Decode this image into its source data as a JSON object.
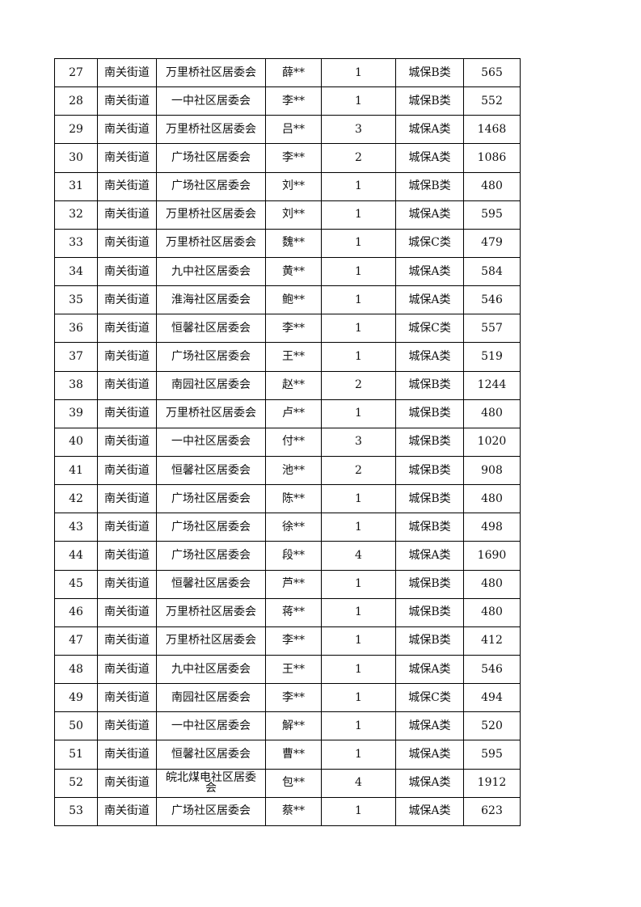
{
  "table": {
    "rows": [
      [
        "27",
        "南关街道",
        "万里桥社区居委会",
        "薛**",
        "1",
        "城保B类",
        "565"
      ],
      [
        "28",
        "南关街道",
        "一中社区居委会",
        "李**",
        "1",
        "城保B类",
        "552"
      ],
      [
        "29",
        "南关街道",
        "万里桥社区居委会",
        "吕**",
        "3",
        "城保A类",
        "1468"
      ],
      [
        "30",
        "南关街道",
        "广场社区居委会",
        "李**",
        "2",
        "城保A类",
        "1086"
      ],
      [
        "31",
        "南关街道",
        "广场社区居委会",
        "刘**",
        "1",
        "城保B类",
        "480"
      ],
      [
        "32",
        "南关街道",
        "万里桥社区居委会",
        "刘**",
        "1",
        "城保A类",
        "595"
      ],
      [
        "33",
        "南关街道",
        "万里桥社区居委会",
        "魏**",
        "1",
        "城保C类",
        "479"
      ],
      [
        "34",
        "南关街道",
        "九中社区居委会",
        "黄**",
        "1",
        "城保A类",
        "584"
      ],
      [
        "35",
        "南关街道",
        "淮海社区居委会",
        "鲍**",
        "1",
        "城保A类",
        "546"
      ],
      [
        "36",
        "南关街道",
        "恒馨社区居委会",
        "李**",
        "1",
        "城保C类",
        "557"
      ],
      [
        "37",
        "南关街道",
        "广场社区居委会",
        "王**",
        "1",
        "城保A类",
        "519"
      ],
      [
        "38",
        "南关街道",
        "南园社区居委会",
        "赵**",
        "2",
        "城保B类",
        "1244"
      ],
      [
        "39",
        "南关街道",
        "万里桥社区居委会",
        "卢**",
        "1",
        "城保B类",
        "480"
      ],
      [
        "40",
        "南关街道",
        "一中社区居委会",
        "付**",
        "3",
        "城保B类",
        "1020"
      ],
      [
        "41",
        "南关街道",
        "恒馨社区居委会",
        "池**",
        "2",
        "城保B类",
        "908"
      ],
      [
        "42",
        "南关街道",
        "广场社区居委会",
        "陈**",
        "1",
        "城保B类",
        "480"
      ],
      [
        "43",
        "南关街道",
        "广场社区居委会",
        "徐**",
        "1",
        "城保B类",
        "498"
      ],
      [
        "44",
        "南关街道",
        "广场社区居委会",
        "段**",
        "4",
        "城保A类",
        "1690"
      ],
      [
        "45",
        "南关街道",
        "恒馨社区居委会",
        "芦**",
        "1",
        "城保B类",
        "480"
      ],
      [
        "46",
        "南关街道",
        "万里桥社区居委会",
        "蒋**",
        "1",
        "城保B类",
        "480"
      ],
      [
        "47",
        "南关街道",
        "万里桥社区居委会",
        "李**",
        "1",
        "城保B类",
        "412"
      ],
      [
        "48",
        "南关街道",
        "九中社区居委会",
        "王**",
        "1",
        "城保A类",
        "546"
      ],
      [
        "49",
        "南关街道",
        "南园社区居委会",
        "李**",
        "1",
        "城保C类",
        "494"
      ],
      [
        "50",
        "南关街道",
        "一中社区居委会",
        "解**",
        "1",
        "城保A类",
        "520"
      ],
      [
        "51",
        "南关街道",
        "恒馨社区居委会",
        "曹**",
        "1",
        "城保A类",
        "595"
      ],
      [
        "52",
        "南关街道",
        "皖北煤电社区居委会",
        "包**",
        "4",
        "城保A类",
        "1912"
      ],
      [
        "53",
        "南关街道",
        "广场社区居委会",
        "蔡**",
        "1",
        "城保A类",
        "623"
      ]
    ]
  }
}
